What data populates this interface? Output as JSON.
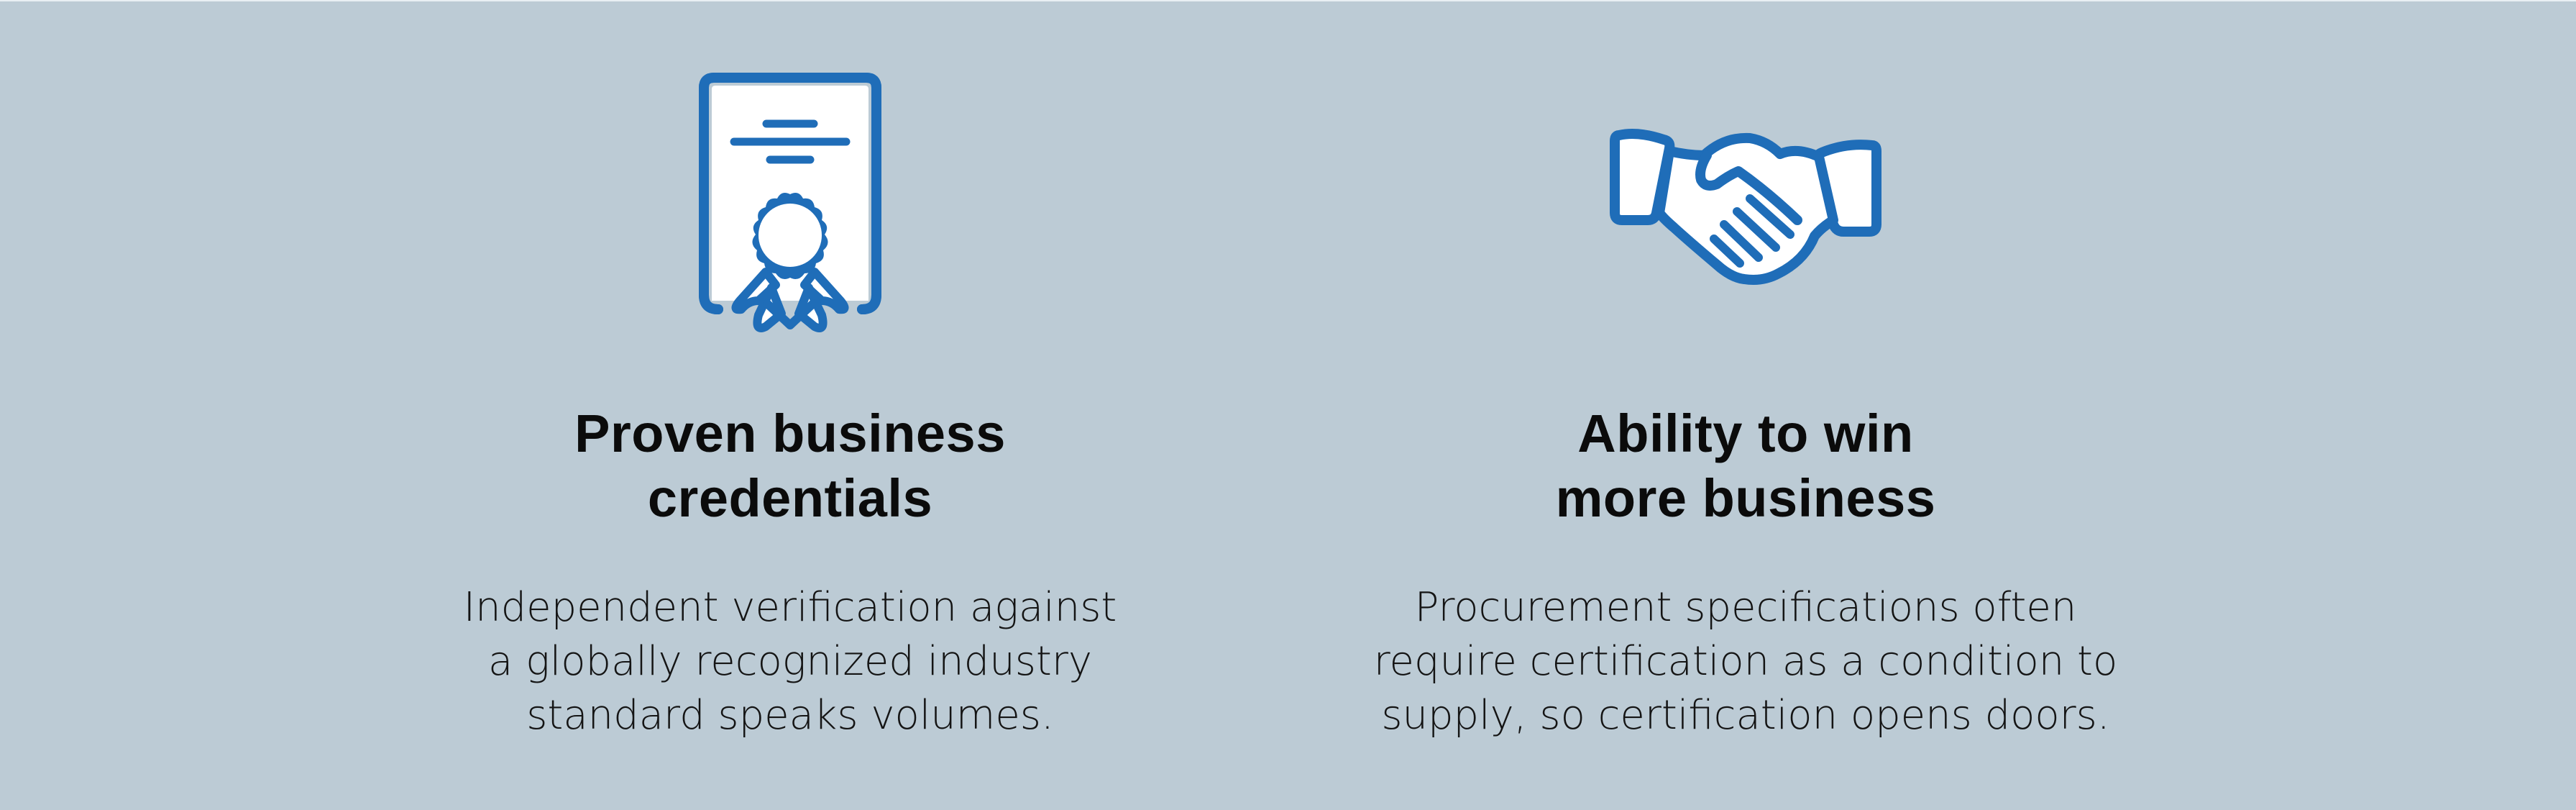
{
  "colors": {
    "background": "#bccbd5",
    "icon_blue": "#1f6db8",
    "text": "#0b0b0b"
  },
  "features": [
    {
      "icon": "certificate-icon",
      "title_lines": [
        "Proven business",
        "credentials"
      ],
      "description_lines": [
        "Independent verification against",
        "a globally recognized industry",
        "standard speaks volumes."
      ]
    },
    {
      "icon": "handshake-icon",
      "title_lines": [
        "Ability to win",
        "more business"
      ],
      "description_lines": [
        "Procurement specifications often",
        "require certification as a condition to",
        "supply, so certification opens doors."
      ]
    }
  ]
}
